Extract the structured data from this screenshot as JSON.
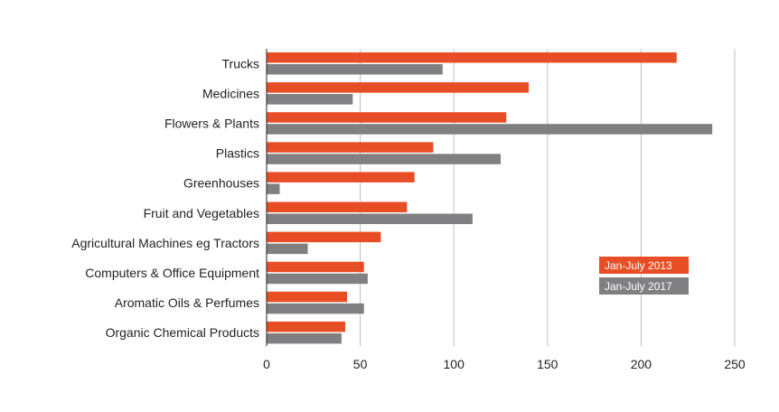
{
  "chart_data": {
    "type": "bar",
    "orientation": "horizontal",
    "categories": [
      "Trucks",
      "Medicines",
      "Flowers & Plants",
      "Plastics",
      "Greenhouses",
      "Fruit and Vegetables",
      "Agricultural Machines eg Tractors",
      "Computers & Office Equipment",
      "Aromatic Oils & Perfumes",
      "Organic Chemical Products"
    ],
    "series": [
      {
        "name": "Jan-July 2013",
        "color": "#e84e25",
        "values": [
          219,
          140,
          128,
          89,
          79,
          75,
          61,
          52,
          43,
          42
        ]
      },
      {
        "name": "Jan-July 2017",
        "color": "#808082",
        "values": [
          94,
          46,
          238,
          125,
          7,
          110,
          22,
          54,
          52,
          40
        ]
      }
    ],
    "xlim": [
      0,
      250
    ],
    "xticks": [
      0,
      50,
      100,
      150,
      200,
      250
    ],
    "grid": true,
    "legend_position": "right",
    "title": "",
    "xlabel": "",
    "ylabel": ""
  }
}
